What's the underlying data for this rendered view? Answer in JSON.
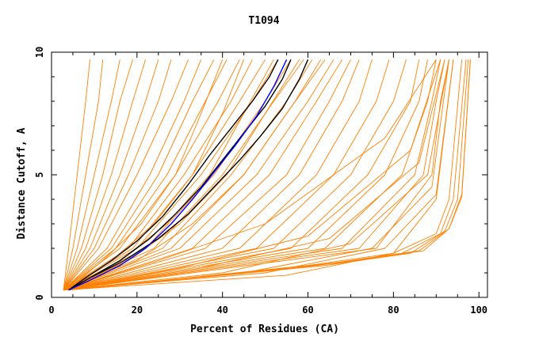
{
  "chart_data": {
    "type": "line",
    "title": "T1094",
    "xlabel": "Percent of Residues (CA)",
    "ylabel": "Distance Cutoff, A",
    "xlim": [
      0,
      102
    ],
    "ylim": [
      0,
      10
    ],
    "xticks": [
      0,
      20,
      40,
      60,
      80,
      100
    ],
    "xtick_labels": [
      "0",
      "20",
      "40",
      "60",
      "80",
      "100"
    ],
    "yticks": [
      0,
      5,
      10
    ],
    "ytick_labels": [
      "0",
      "5",
      "10"
    ],
    "grid": false,
    "legend": "none",
    "colors": {
      "models": "#ff8000",
      "highlight_black": "#000000",
      "highlight_blue": "#0000ff"
    },
    "series": [
      {
        "color": "#ff8000",
        "x": [
          2.8,
          4,
          6,
          8,
          9
        ],
        "y": [
          0.3,
          2.0,
          5.0,
          8.0,
          9.7
        ]
      },
      {
        "color": "#ff8000",
        "x": [
          2.8,
          5,
          8,
          11,
          12
        ],
        "y": [
          0.3,
          2.0,
          5.0,
          8.0,
          9.7
        ]
      },
      {
        "color": "#ff8000",
        "x": [
          2.8,
          6,
          10,
          14,
          16
        ],
        "y": [
          0.3,
          2.0,
          5.0,
          8.0,
          9.7
        ]
      },
      {
        "color": "#ff8000",
        "x": [
          2.8,
          7,
          12,
          16,
          19
        ],
        "y": [
          0.3,
          2.0,
          5.0,
          8.0,
          9.7
        ]
      },
      {
        "color": "#ff8000",
        "x": [
          2.8,
          8,
          14,
          19,
          22
        ],
        "y": [
          0.3,
          2.0,
          5.0,
          8.0,
          9.7
        ]
      },
      {
        "color": "#ff8000",
        "x": [
          2.8,
          9,
          16,
          22,
          25
        ],
        "y": [
          0.3,
          2.0,
          5.0,
          8.0,
          9.7
        ]
      },
      {
        "color": "#ff8000",
        "x": [
          2.8,
          10,
          18,
          25,
          28
        ],
        "y": [
          0.3,
          2.0,
          5.0,
          8.0,
          9.7
        ]
      },
      {
        "color": "#ff8000",
        "x": [
          2.8,
          11,
          20,
          28,
          32
        ],
        "y": [
          0.3,
          2.0,
          5.0,
          8.0,
          9.7
        ]
      },
      {
        "color": "#ff8000",
        "x": [
          2.8,
          13,
          23,
          31,
          35
        ],
        "y": [
          0.3,
          2.0,
          5.0,
          8.0,
          9.7
        ]
      },
      {
        "color": "#ff8000",
        "x": [
          2.8,
          14,
          25,
          33,
          38
        ],
        "y": [
          0.3,
          2.0,
          5.0,
          8.0,
          9.7
        ]
      },
      {
        "color": "#ff8000",
        "x": [
          2.8,
          15,
          27,
          36,
          41
        ],
        "y": [
          0.3,
          2.0,
          5.0,
          8.0,
          9.7
        ]
      },
      {
        "color": "#ff8000",
        "x": [
          2.8,
          16,
          29,
          39,
          44
        ],
        "y": [
          0.3,
          2.0,
          5.0,
          8.0,
          9.7
        ]
      },
      {
        "color": "#ff8000",
        "x": [
          2.8,
          18,
          31,
          42,
          47
        ],
        "y": [
          0.3,
          2.0,
          5.0,
          8.0,
          9.7
        ]
      },
      {
        "color": "#ff8000",
        "x": [
          2.8,
          19,
          33,
          44,
          50
        ],
        "y": [
          0.3,
          2.0,
          5.0,
          8.0,
          9.7
        ]
      },
      {
        "color": "#ff8000",
        "x": [
          2.8,
          20,
          35,
          47,
          53
        ],
        "y": [
          0.3,
          2.0,
          5.0,
          8.0,
          9.7
        ]
      },
      {
        "color": "#ff8000",
        "x": [
          2.8,
          22,
          38,
          50,
          56
        ],
        "y": [
          0.3,
          2.0,
          5.0,
          8.0,
          9.7
        ]
      },
      {
        "color": "#ff8000",
        "x": [
          2.8,
          24,
          40,
          52,
          59
        ],
        "y": [
          0.3,
          2.0,
          5.0,
          8.0,
          9.7
        ]
      },
      {
        "color": "#ff8000",
        "x": [
          2.8,
          26,
          42,
          55,
          61
        ],
        "y": [
          0.3,
          2.0,
          5.0,
          8.0,
          9.7
        ]
      },
      {
        "color": "#ff8000",
        "x": [
          2.8,
          28,
          45,
          57,
          63
        ],
        "y": [
          0.3,
          2.0,
          5.0,
          8.0,
          9.7
        ]
      },
      {
        "color": "#ff8000",
        "x": [
          2.8,
          30,
          48,
          60,
          66
        ],
        "y": [
          0.3,
          2.0,
          5.0,
          8.0,
          9.7
        ]
      },
      {
        "color": "#ff8000",
        "x": [
          2.8,
          33,
          51,
          62,
          68
        ],
        "y": [
          0.3,
          2.0,
          5.0,
          8.0,
          9.7
        ]
      },
      {
        "color": "#ff8000",
        "x": [
          2.8,
          36,
          55,
          65,
          70
        ],
        "y": [
          0.3,
          2.0,
          5.0,
          8.0,
          9.7
        ]
      },
      {
        "color": "#ff8000",
        "x": [
          2.8,
          40,
          58,
          68,
          72
        ],
        "y": [
          0.3,
          2.0,
          5.0,
          8.0,
          9.7
        ]
      },
      {
        "color": "#ff8000",
        "x": [
          2.8,
          44,
          62,
          72,
          75
        ],
        "y": [
          0.3,
          2.0,
          5.0,
          8.0,
          9.7
        ]
      },
      {
        "color": "#ff8000",
        "x": [
          2.8,
          48,
          66,
          76,
          79
        ],
        "y": [
          0.3,
          2.0,
          5.0,
          8.0,
          9.7
        ]
      },
      {
        "color": "#ff8000",
        "x": [
          2.8,
          52,
          70,
          80,
          83
        ],
        "y": [
          0.3,
          2.0,
          5.0,
          8.0,
          9.7
        ]
      },
      {
        "color": "#ff8000",
        "x": [
          2.8,
          56,
          74,
          84,
          86
        ],
        "y": [
          0.3,
          2.0,
          5.0,
          8.0,
          9.7
        ]
      },
      {
        "color": "#ff8000",
        "x": [
          2.8,
          60,
          78,
          86,
          88
        ],
        "y": [
          0.3,
          2.0,
          5.0,
          8.0,
          9.7
        ]
      },
      {
        "color": "#ff8000",
        "x": [
          2.8,
          64,
          82,
          88,
          90
        ],
        "y": [
          0.3,
          2.0,
          5.0,
          8.0,
          9.7
        ]
      },
      {
        "color": "#ff8000",
        "x": [
          2.8,
          68,
          85,
          89,
          91
        ],
        "y": [
          0.3,
          2.0,
          5.0,
          8.0,
          9.7
        ]
      },
      {
        "color": "#ff8000",
        "x": [
          2.8,
          72,
          87,
          90,
          92
        ],
        "y": [
          0.3,
          2.0,
          5.0,
          8.0,
          9.7
        ]
      },
      {
        "color": "#ff8000",
        "x": [
          2.8,
          76,
          89,
          91,
          93
        ],
        "y": [
          0.3,
          2.0,
          5.0,
          8.0,
          9.7
        ]
      },
      {
        "color": "#ff8000",
        "x": [
          2.8,
          25,
          50,
          78,
          90
        ],
        "y": [
          0.3,
          1.5,
          3.0,
          6.5,
          9.7
        ]
      },
      {
        "color": "#ff8000",
        "x": [
          2.8,
          30,
          60,
          84,
          91
        ],
        "y": [
          0.3,
          1.2,
          2.5,
          6.0,
          9.7
        ]
      },
      {
        "color": "#ff8000",
        "x": [
          2.8,
          35,
          65,
          86,
          92
        ],
        "y": [
          0.3,
          1.2,
          2.4,
          5.5,
          9.7
        ]
      },
      {
        "color": "#ff8000",
        "x": [
          2.8,
          40,
          70,
          88,
          93
        ],
        "y": [
          0.3,
          1.0,
          2.2,
          5.0,
          9.7
        ]
      },
      {
        "color": "#ff8000",
        "x": [
          2.8,
          45,
          75,
          89,
          93
        ],
        "y": [
          0.3,
          1.0,
          2.0,
          4.5,
          9.7
        ]
      },
      {
        "color": "#ff8000",
        "x": [
          2.8,
          50,
          78,
          90,
          94
        ],
        "y": [
          0.3,
          1.0,
          2.0,
          4.2,
          9.7
        ]
      },
      {
        "color": "#ff8000",
        "x": [
          2.8,
          55,
          80,
          90,
          94
        ],
        "y": [
          0.3,
          0.9,
          1.8,
          4.0,
          9.7
        ]
      },
      {
        "color": "#ff8000",
        "x": [
          4,
          60,
          80,
          90,
          93,
          96
        ],
        "y": [
          0.3,
          1.3,
          1.8,
          2.6,
          4.0,
          9.7
        ]
      },
      {
        "color": "#ff8000",
        "x": [
          4,
          62,
          82,
          91,
          94,
          97
        ],
        "y": [
          0.3,
          1.3,
          1.8,
          2.6,
          4.0,
          9.7
        ]
      },
      {
        "color": "#ff8000",
        "x": [
          4,
          64,
          84,
          92,
          95,
          97.5
        ],
        "y": [
          0.3,
          1.3,
          1.8,
          2.7,
          4.0,
          9.7
        ]
      },
      {
        "color": "#ff8000",
        "x": [
          4,
          66,
          86,
          93,
          96,
          98
        ],
        "y": [
          0.3,
          1.4,
          1.9,
          2.8,
          4.1,
          9.7
        ]
      },
      {
        "color": "#ff8000",
        "x": [
          4,
          67,
          87,
          93,
          96,
          98
        ],
        "y": [
          0.3,
          1.4,
          1.9,
          2.8,
          4.2,
          9.7
        ]
      },
      {
        "color": "#ff8000",
        "x": [
          3.5,
          14,
          24,
          33,
          40,
          45
        ],
        "y": [
          0.3,
          1.5,
          3.0,
          5.0,
          7.5,
          9.7
        ]
      },
      {
        "color": "#ff8000",
        "x": [
          3.5,
          12,
          21,
          29,
          35,
          40
        ],
        "y": [
          0.3,
          1.5,
          3.0,
          5.0,
          7.5,
          9.7
        ]
      },
      {
        "color": "#ff8000",
        "x": [
          3.5,
          16,
          27,
          37,
          45,
          52
        ],
        "y": [
          0.3,
          1.5,
          3.0,
          5.0,
          7.5,
          9.7
        ]
      },
      {
        "color": "#ff8000",
        "x": [
          3.5,
          18,
          30,
          41,
          50,
          58
        ],
        "y": [
          0.3,
          1.5,
          3.0,
          5.0,
          7.5,
          9.7
        ]
      },
      {
        "color": "#ff8000",
        "x": [
          3.5,
          20,
          33,
          45,
          55,
          64
        ],
        "y": [
          0.3,
          1.5,
          3.0,
          5.0,
          7.5,
          9.7
        ]
      },
      {
        "color": "#000000",
        "x": [
          4,
          8,
          14,
          20,
          26,
          32,
          37,
          42,
          47,
          51,
          53
        ],
        "y": [
          0.3,
          0.8,
          1.5,
          2.3,
          3.3,
          4.6,
          5.8,
          6.9,
          8.0,
          9.0,
          9.7
        ]
      },
      {
        "color": "#000000",
        "x": [
          4,
          9,
          16,
          23,
          29,
          35,
          40,
          45,
          50,
          54,
          56
        ],
        "y": [
          0.3,
          0.8,
          1.5,
          2.4,
          3.4,
          4.5,
          5.6,
          6.7,
          7.8,
          8.9,
          9.7
        ]
      },
      {
        "color": "#000000",
        "x": [
          4,
          9,
          17,
          25,
          32,
          38,
          44,
          49,
          54,
          58,
          60
        ],
        "y": [
          0.3,
          0.8,
          1.5,
          2.4,
          3.4,
          4.5,
          5.6,
          6.6,
          7.7,
          8.9,
          9.7
        ]
      },
      {
        "color": "#0000ff",
        "x": [
          4,
          9,
          16,
          22,
          28,
          33,
          38,
          43,
          48,
          52,
          55
        ],
        "y": [
          0.3,
          0.7,
          1.3,
          2.0,
          3.0,
          4.0,
          5.1,
          6.2,
          7.4,
          8.6,
          9.7
        ]
      }
    ]
  }
}
